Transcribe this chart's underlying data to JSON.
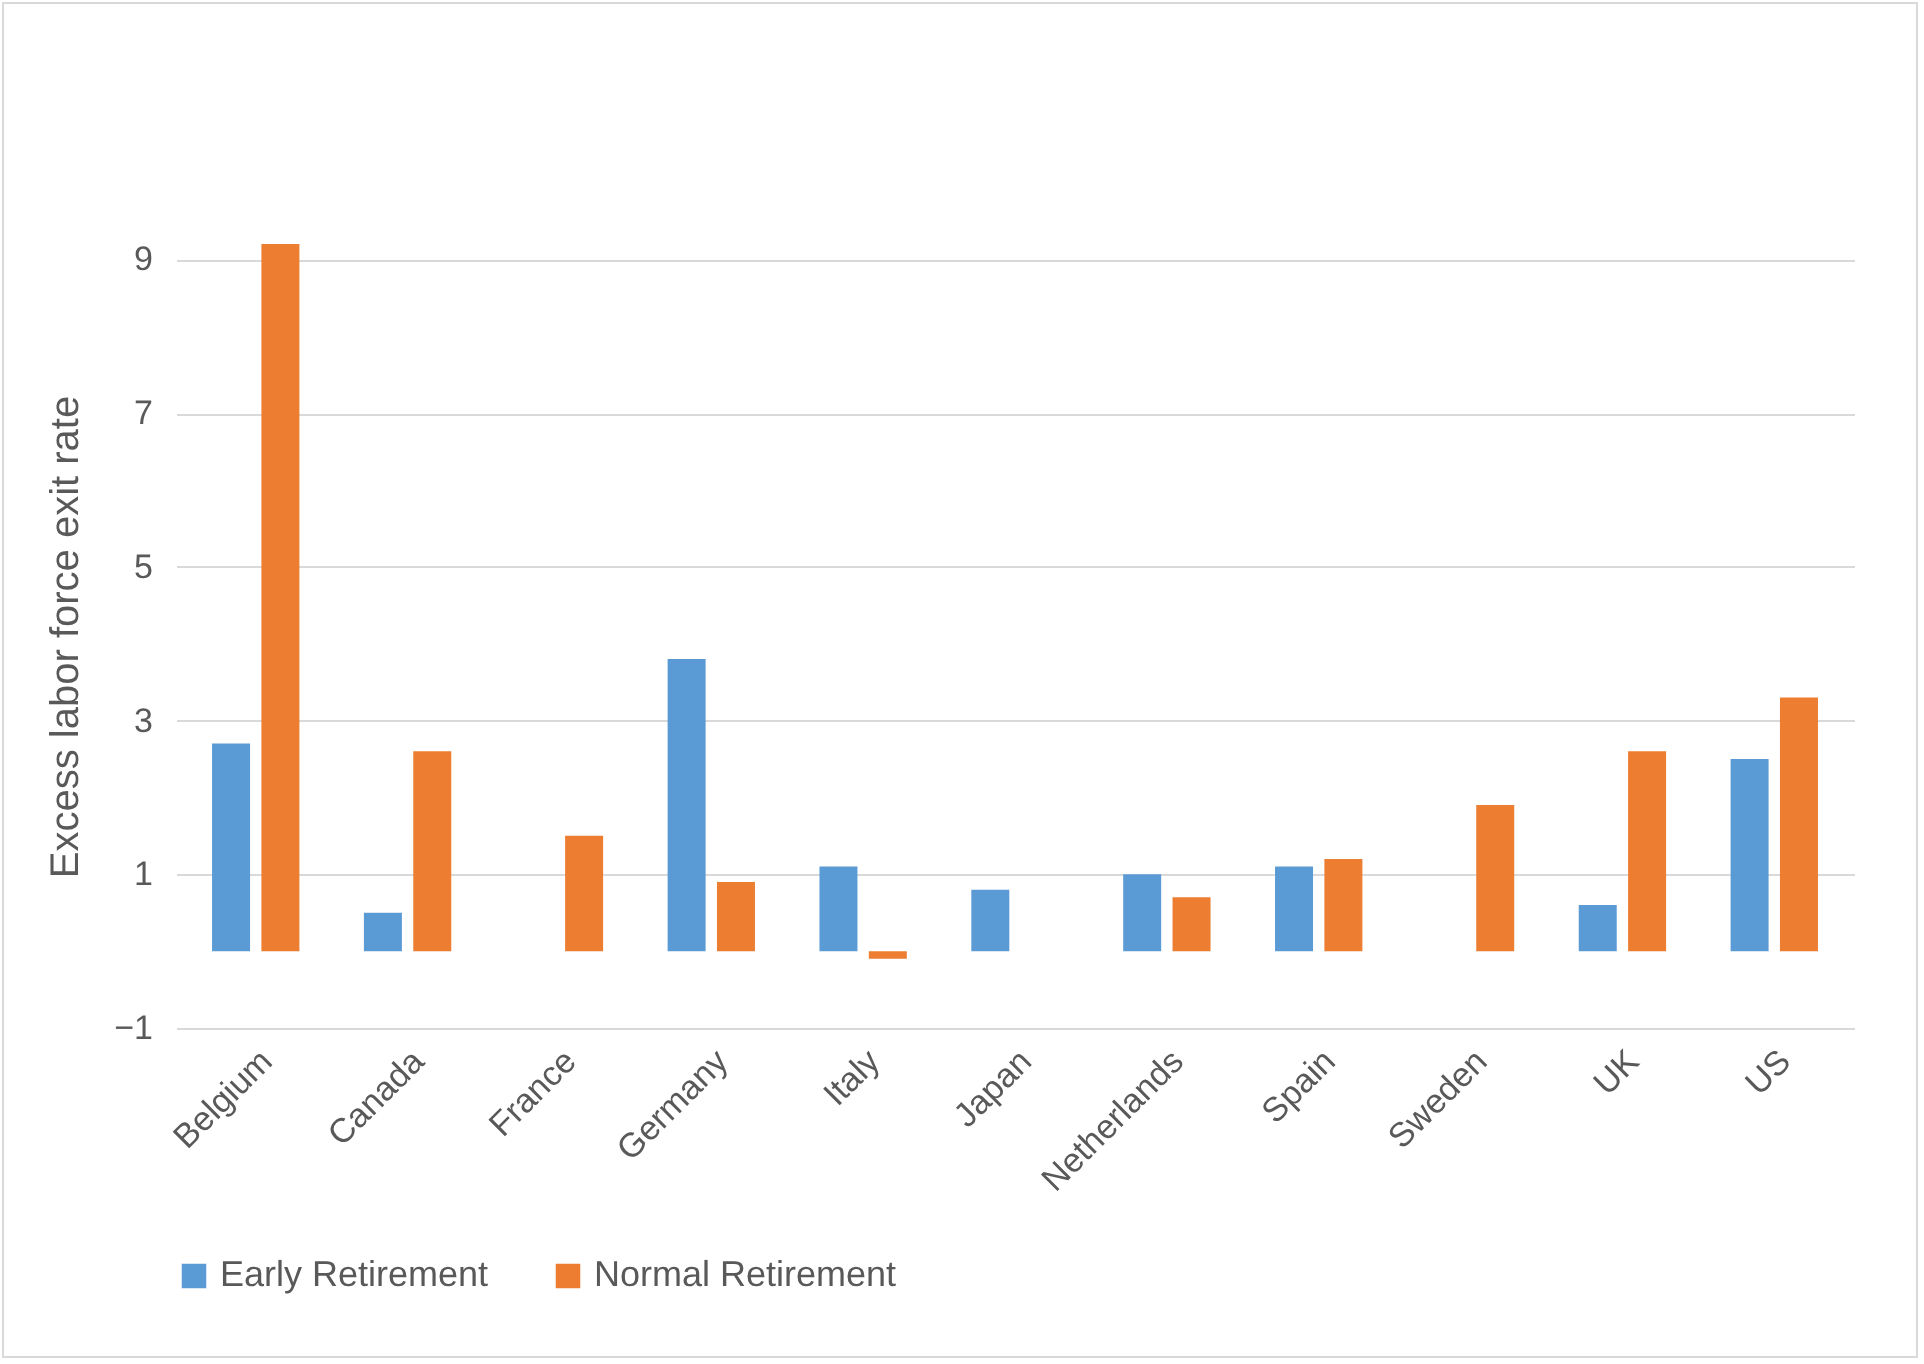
{
  "chart_data": {
    "type": "bar",
    "ylabel": "Excess labor force exit rate",
    "categories": [
      "Belgium",
      "Canada",
      "France",
      "Germany",
      "Italy",
      "Japan",
      "Netherlands",
      "Spain",
      "Sweden",
      "UK",
      "US"
    ],
    "series": [
      {
        "name": "Early Retirement",
        "color": "#5b9bd5",
        "values": [
          2.7,
          0.5,
          null,
          3.8,
          1.1,
          0.8,
          1.0,
          1.1,
          null,
          0.6,
          2.5
        ]
      },
      {
        "name": "Normal Retirement",
        "color": "#ed7d31",
        "values": [
          9.2,
          2.6,
          1.5,
          0.9,
          -0.1,
          null,
          0.7,
          1.2,
          1.9,
          2.6,
          3.3
        ]
      }
    ],
    "ylim": [
      -1,
      9.2
    ],
    "yticks": [
      -1,
      1,
      3,
      5,
      7,
      9
    ],
    "grid": "y",
    "legend": "bottom"
  }
}
